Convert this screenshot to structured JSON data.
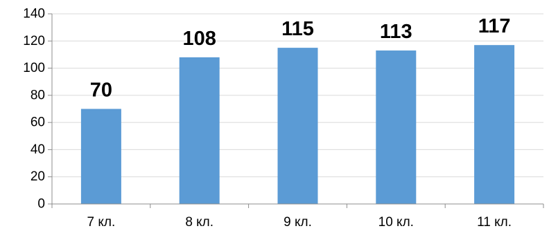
{
  "chart_data": {
    "type": "bar",
    "categories": [
      "7 кл.",
      "8 кл.",
      "9 кл.",
      "10 кл.",
      "11 кл."
    ],
    "values": [
      70,
      108,
      115,
      113,
      117
    ],
    "data_labels": [
      "70",
      "108",
      "115",
      "113",
      "117"
    ],
    "y_ticks": [
      "0",
      "20",
      "40",
      "60",
      "80",
      "100",
      "120",
      "140"
    ],
    "ylim": [
      0,
      140
    ],
    "title": "",
    "xlabel": "",
    "ylabel": "",
    "grid": true,
    "legend": "none",
    "bar_color": "#5b9bd5",
    "grid_color": "#d9d9d9",
    "axis_color": "#8c8c8c"
  }
}
